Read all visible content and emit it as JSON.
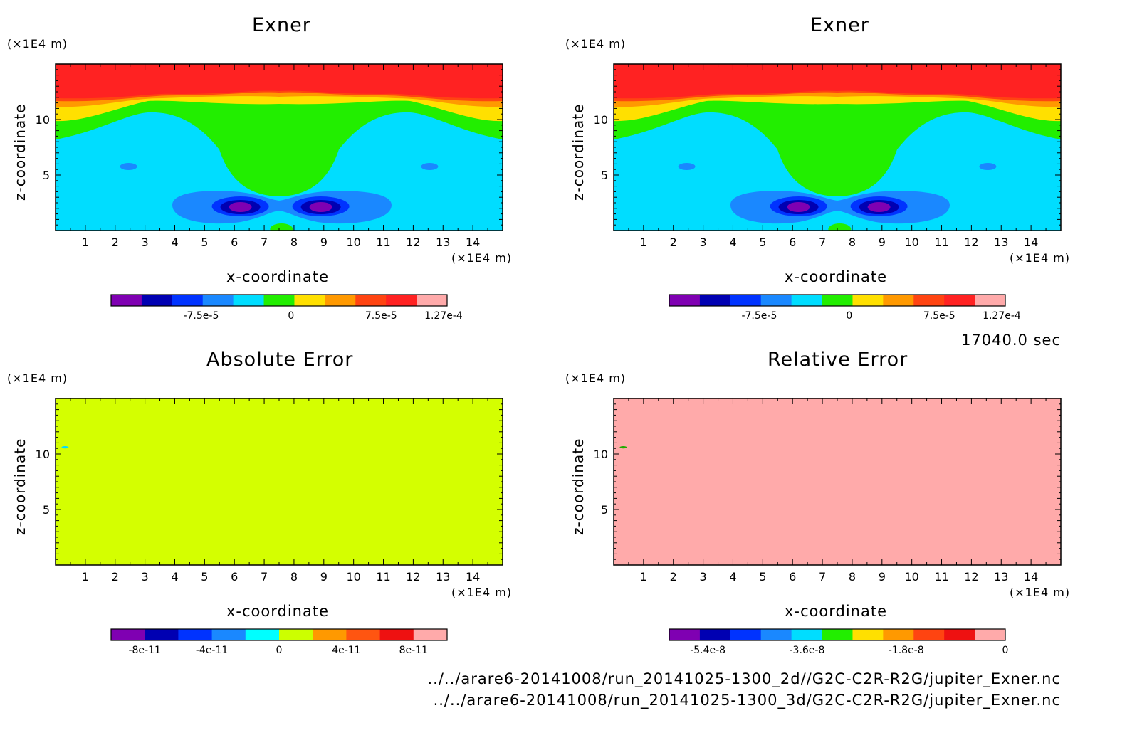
{
  "time_label": "17040.0 sec",
  "files": [
    "../../arare6-20141008/run_20141025-1300_2d//G2C-C2R-R2G/jupiter_Exner.nc",
    "../../arare6-20141008/run_20141025-1300_3d/G2C-C2R-R2G/jupiter_Exner.nc"
  ],
  "chart_data": [
    {
      "type": "heatmap",
      "title": "Exner",
      "xlabel": "x-coordinate",
      "ylabel": "z-coordinate",
      "x_unit": "(×1E4 m)",
      "y_unit": "(×1E4 m)",
      "xlim": [
        0,
        15
      ],
      "ylim": [
        0,
        15
      ],
      "x_ticks": [
        1,
        2,
        3,
        4,
        5,
        6,
        7,
        8,
        9,
        10,
        11,
        12,
        13,
        14
      ],
      "y_ticks": [
        5,
        10
      ],
      "colorbar": {
        "colors": [
          "#7f00b2",
          "#0000b2",
          "#0033ff",
          "#1a88ff",
          "#00ddff",
          "#22ee00",
          "#ffe000",
          "#ff9900",
          "#ff4411",
          "#ff2222",
          "#ffaaaa"
        ],
        "labels": [
          "-7.5e-5",
          "0",
          "7.5e-5",
          "1.27e-4"
        ],
        "label_positions": [
          -7.5e-05,
          0,
          7.5e-05,
          0.000127
        ],
        "range": [
          -0.00015,
          0.00013
        ]
      },
      "field": "exner"
    },
    {
      "type": "heatmap",
      "title": "Exner",
      "xlabel": "x-coordinate",
      "ylabel": "z-coordinate",
      "x_unit": "(×1E4 m)",
      "y_unit": "(×1E4 m)",
      "xlim": [
        0,
        15
      ],
      "ylim": [
        0,
        15
      ],
      "x_ticks": [
        1,
        2,
        3,
        4,
        5,
        6,
        7,
        8,
        9,
        10,
        11,
        12,
        13,
        14
      ],
      "y_ticks": [
        5,
        10
      ],
      "colorbar": {
        "colors": [
          "#7f00b2",
          "#0000b2",
          "#0033ff",
          "#1a88ff",
          "#00ddff",
          "#22ee00",
          "#ffe000",
          "#ff9900",
          "#ff4411",
          "#ff2222",
          "#ffaaaa"
        ],
        "labels": [
          "-7.5e-5",
          "0",
          "7.5e-5",
          "1.27e-4"
        ],
        "label_positions": [
          -7.5e-05,
          0,
          7.5e-05,
          0.000127
        ],
        "range": [
          -0.00015,
          0.00013
        ]
      },
      "field": "exner"
    },
    {
      "type": "heatmap",
      "title": "Absolute Error",
      "xlabel": "x-coordinate",
      "ylabel": "z-coordinate",
      "x_unit": "(×1E4 m)",
      "y_unit": "(×1E4 m)",
      "xlim": [
        0,
        15
      ],
      "ylim": [
        0,
        15
      ],
      "x_ticks": [
        1,
        2,
        3,
        4,
        5,
        6,
        7,
        8,
        9,
        10,
        11,
        12,
        13,
        14
      ],
      "y_ticks": [
        5,
        10
      ],
      "colorbar": {
        "colors": [
          "#7f00b2",
          "#0000b2",
          "#0033ff",
          "#1a88ff",
          "#00ffff",
          "#ccff00",
          "#ff9900",
          "#ff5511",
          "#ee1111",
          "#ffaaaa"
        ],
        "labels": [
          "-8e-11",
          "-4e-11",
          "0",
          "4e-11",
          "8e-11"
        ],
        "label_positions": [
          -8e-11,
          -4e-11,
          0,
          4e-11,
          8e-11
        ],
        "range": [
          -1e-10,
          1e-10
        ]
      },
      "field": "uniform",
      "fill": "#d4ff00"
    },
    {
      "type": "heatmap",
      "title": "Relative Error",
      "xlabel": "x-coordinate",
      "ylabel": "z-coordinate",
      "x_unit": "(×1E4 m)",
      "y_unit": "(×1E4 m)",
      "xlim": [
        0,
        15
      ],
      "ylim": [
        0,
        15
      ],
      "x_ticks": [
        1,
        2,
        3,
        4,
        5,
        6,
        7,
        8,
        9,
        10,
        11,
        12,
        13,
        14
      ],
      "y_ticks": [
        5,
        10
      ],
      "colorbar": {
        "colors": [
          "#7f00b2",
          "#0000b2",
          "#0033ff",
          "#1a88ff",
          "#00ddff",
          "#22ee00",
          "#ffe000",
          "#ff9900",
          "#ff4411",
          "#ee1111",
          "#ffaaaa"
        ],
        "labels": [
          "-5.4e-8",
          "-3.6e-8",
          "-1.8e-8",
          "0"
        ],
        "label_positions": [
          -5.4e-08,
          -3.6e-08,
          -1.8e-08,
          0
        ],
        "range": [
          -6.1e-08,
          0
        ]
      },
      "field": "uniform",
      "fill": "#ffaaaa"
    }
  ]
}
